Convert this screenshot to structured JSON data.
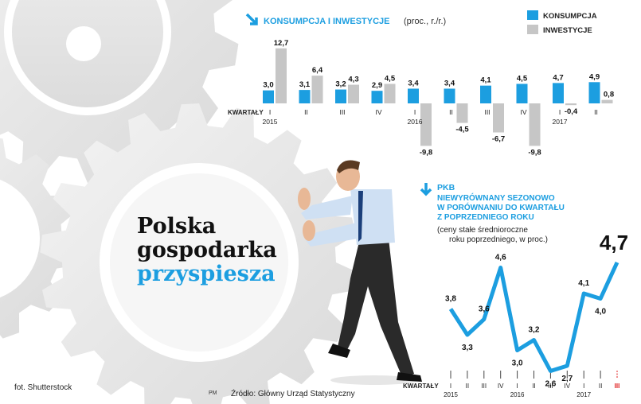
{
  "headline": {
    "line1": "Polska",
    "line2": "gospodarka",
    "line3": "przyspiesza"
  },
  "credit": "fot. Shutterstock",
  "initials": "PM",
  "source": "Źródło: Główny Urząd Statystyczny",
  "colors": {
    "accent": "#1c9ee0",
    "investment": "#c6c6c6",
    "text": "#111111"
  },
  "chart_data": [
    {
      "type": "bar",
      "title": "KONSUMPCJA I INWESTYCJE",
      "subtitle": "(proc., r./r.)",
      "axis_label": "KWARTAŁY",
      "categories": [
        "I",
        "II",
        "III",
        "IV",
        "I",
        "II",
        "III",
        "IV",
        "I",
        "II"
      ],
      "years": [
        {
          "label": "2015",
          "index": 0
        },
        {
          "label": "2016",
          "index": 4
        },
        {
          "label": "2017",
          "index": 8
        }
      ],
      "series": [
        {
          "name": "KONSUMPCJA",
          "labels": [
            "3,0",
            "3,1",
            "3,2",
            "2,9",
            "3,4",
            "3,4",
            "4,1",
            "4,5",
            "4,7",
            "4,9"
          ],
          "values": [
            3.0,
            3.1,
            3.2,
            2.9,
            3.4,
            3.4,
            4.1,
            4.5,
            4.7,
            4.9
          ]
        },
        {
          "name": "INWESTYCJE",
          "labels": [
            "12,7",
            "6,4",
            "4,3",
            "4,5",
            "-9,8",
            "-4,5",
            "-6,7",
            "-9,8",
            "-0,4",
            "0,8"
          ],
          "values": [
            12.7,
            6.4,
            4.3,
            4.5,
            -9.8,
            -4.5,
            -6.7,
            -9.8,
            -0.4,
            0.8
          ]
        }
      ]
    },
    {
      "type": "line",
      "title": "PKB",
      "subtitle_lines": [
        "NIEWYRÓWNANY SEZONOWO",
        "W PORÓWNANIU DO KWARTAŁU",
        "Z POPRZEDNIEGO ROKU"
      ],
      "note_lines": [
        "(ceny stałe średnioroczne",
        "roku poprzedniego, w proc.)"
      ],
      "axis_label": "KWARTAŁY",
      "categories": [
        "I",
        "II",
        "III",
        "IV",
        "I",
        "II",
        "III",
        "IV",
        "I",
        "II",
        "III"
      ],
      "years": [
        {
          "label": "2015",
          "index": 0
        },
        {
          "label": "2016",
          "index": 4
        },
        {
          "label": "2017",
          "index": 8
        }
      ],
      "labels": [
        "3,8",
        "3,3",
        "3,6",
        "4,6",
        "3,0",
        "3,2",
        "2,6",
        "2,7",
        "4,1",
        "4,0",
        "4,7"
      ],
      "values": [
        3.8,
        3.3,
        3.6,
        4.6,
        3.0,
        3.2,
        2.6,
        2.7,
        4.1,
        4.0,
        4.7
      ],
      "highlight_index": 10
    }
  ]
}
